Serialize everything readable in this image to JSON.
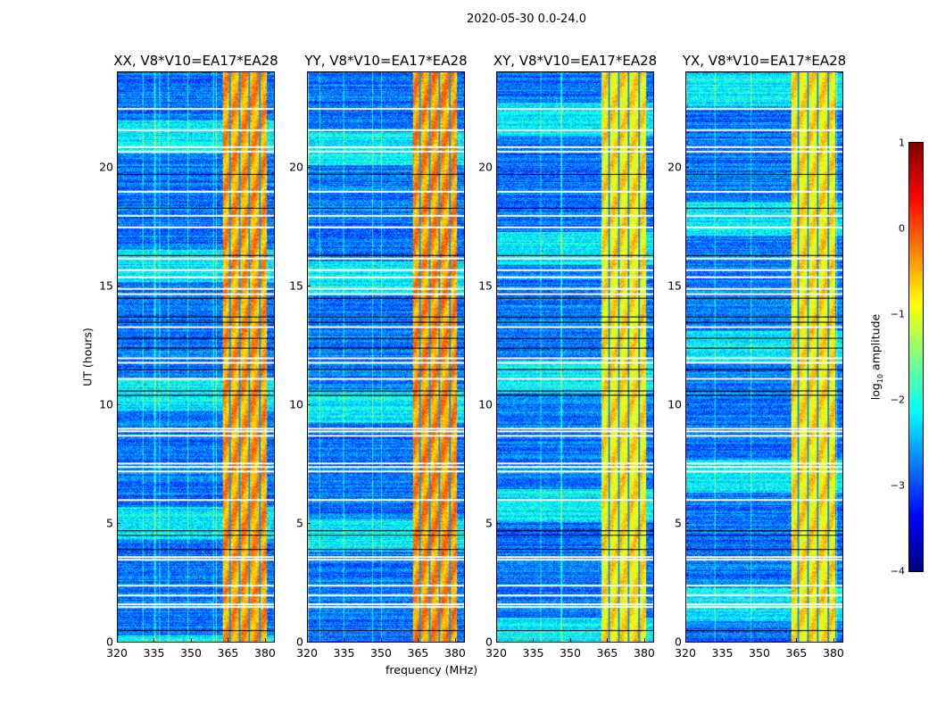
{
  "chart_data": {
    "type": "heatmap",
    "title": "2020-05-30 0.0-24.0",
    "xlabel": "frequency (MHz)",
    "ylabel": "UT (hours)",
    "xlim": [
      320,
      384
    ],
    "ylim": [
      0,
      24
    ],
    "xticks": [
      "320",
      "335",
      "350",
      "365",
      "380"
    ],
    "xtick_values": [
      320,
      335,
      350,
      365,
      380
    ],
    "yticks": [
      "0",
      "5",
      "10",
      "15",
      "20"
    ],
    "ytick_values": [
      0,
      5,
      10,
      15,
      20
    ],
    "panels": [
      {
        "title": "XX, V8*V10=EA17*EA28",
        "seed": 11,
        "band_level": -0.4
      },
      {
        "title": "YY, V8*V10=EA17*EA28",
        "seed": 23,
        "band_level": -0.35
      },
      {
        "title": "XY, V8*V10=EA17*EA28",
        "seed": 37,
        "band_level": -0.75
      },
      {
        "title": "YX, V8*V10=EA17*EA28",
        "seed": 51,
        "band_level": -0.75
      }
    ],
    "background_level": -2.8,
    "bright_band_mhz": [
      361,
      381
    ],
    "subband_edges_mhz": [
      365.8,
      369.9,
      374.0,
      378.1
    ],
    "flagged_hours_white": [
      1.5,
      1.6,
      2.0,
      2.4,
      3.5,
      3.6,
      6.0,
      7.2,
      7.4,
      7.55,
      8.7,
      8.9,
      9.0,
      11.1,
      11.8,
      12.0,
      13.3,
      14.7,
      14.9,
      15.4,
      15.7,
      16.2,
      17.5,
      18.0,
      19.0,
      20.7,
      20.9,
      21.6,
      22.5
    ],
    "flagged_hours_black": [
      0.5,
      3.9,
      4.5,
      4.7,
      10.4,
      10.6,
      11.5,
      12.4,
      12.8,
      13.5,
      13.7,
      14.5,
      16.3,
      18.3,
      19.7
    ],
    "colorbar": {
      "label": "log",
      "label_sub": "10",
      "label_rest": " amplitude",
      "range": [
        -4,
        1
      ],
      "ticks": [
        "1",
        "0",
        "−1",
        "−2",
        "−3",
        "−4"
      ],
      "tick_values": [
        1,
        0,
        -1,
        -2,
        -3,
        -4
      ],
      "colormap": "jet"
    }
  }
}
